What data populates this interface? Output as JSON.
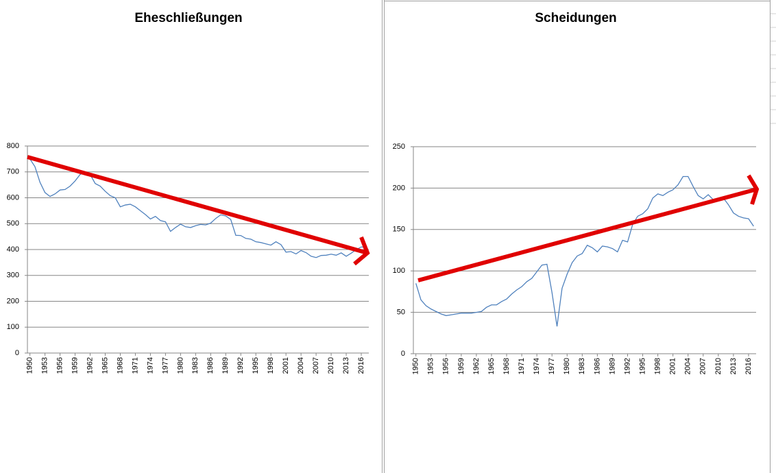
{
  "chart_data": [
    {
      "type": "line",
      "title": "Eheschließungen",
      "color": "#4f81bd",
      "categories": [
        "1950",
        null,
        null,
        "1953",
        null,
        null,
        "1956",
        null,
        null,
        "1959",
        null,
        null,
        "1962",
        null,
        null,
        "1965",
        null,
        null,
        "1968",
        null,
        null,
        "1971",
        null,
        null,
        "1974",
        null,
        null,
        "1977",
        null,
        null,
        "1980",
        null,
        null,
        "1983",
        null,
        null,
        "1986",
        null,
        null,
        "1989",
        null,
        null,
        "1992",
        null,
        null,
        "1995",
        null,
        null,
        "1998",
        null,
        null,
        "2001",
        null,
        null,
        "2004",
        null,
        null,
        "2007",
        null,
        null,
        "2010",
        null,
        null,
        "2013",
        null,
        null,
        "2016",
        null
      ],
      "values": [
        750,
        720,
        660,
        620,
        605,
        615,
        630,
        632,
        645,
        665,
        690,
        700,
        690,
        655,
        645,
        625,
        608,
        600,
        565,
        572,
        575,
        565,
        550,
        535,
        518,
        528,
        512,
        507,
        470,
        485,
        498,
        488,
        485,
        492,
        497,
        495,
        502,
        520,
        534,
        530,
        516,
        455,
        454,
        443,
        440,
        430,
        427,
        422,
        417,
        430,
        419,
        390,
        392,
        383,
        396,
        388,
        374,
        369,
        377,
        378,
        382,
        378,
        387,
        374,
        386,
        400,
        410,
        408
      ],
      "ylim": [
        0,
        800
      ],
      "yticks": [
        0,
        100,
        200,
        300,
        400,
        500,
        600,
        700,
        800
      ],
      "grid": true
    },
    {
      "type": "line",
      "title": "Scheidungen",
      "color": "#4f81bd",
      "categories": [
        "1950",
        null,
        null,
        "1953",
        null,
        null,
        "1956",
        null,
        null,
        "1959",
        null,
        null,
        "1962",
        null,
        null,
        "1965",
        null,
        null,
        "1968",
        null,
        null,
        "1971",
        null,
        null,
        "1974",
        null,
        null,
        "1977",
        null,
        null,
        "1980",
        null,
        null,
        "1983",
        null,
        null,
        "1986",
        null,
        null,
        "1989",
        null,
        null,
        "1992",
        null,
        null,
        "1995",
        null,
        null,
        "1998",
        null,
        null,
        "2001",
        null,
        null,
        "2004",
        null,
        null,
        "2007",
        null,
        null,
        "2010",
        null,
        null,
        "2013",
        null,
        null,
        "2016",
        null
      ],
      "values": [
        85,
        65,
        58,
        54,
        51,
        48,
        46,
        47,
        48,
        49,
        49,
        49,
        50,
        51,
        56,
        59,
        59,
        63,
        66,
        72,
        77,
        81,
        87,
        91,
        99,
        107,
        108,
        74,
        33,
        79,
        96,
        110,
        118,
        121,
        131,
        128,
        123,
        130,
        129,
        127,
        123,
        137,
        135,
        156,
        166,
        169,
        175,
        188,
        193,
        191,
        195,
        198,
        204,
        214,
        214,
        202,
        191,
        187,
        192,
        186,
        187,
        188,
        180,
        170,
        166,
        164,
        163,
        154
      ],
      "ylim": [
        0,
        250
      ],
      "yticks": [
        0,
        50,
        100,
        150,
        200,
        250
      ],
      "grid": true
    }
  ]
}
